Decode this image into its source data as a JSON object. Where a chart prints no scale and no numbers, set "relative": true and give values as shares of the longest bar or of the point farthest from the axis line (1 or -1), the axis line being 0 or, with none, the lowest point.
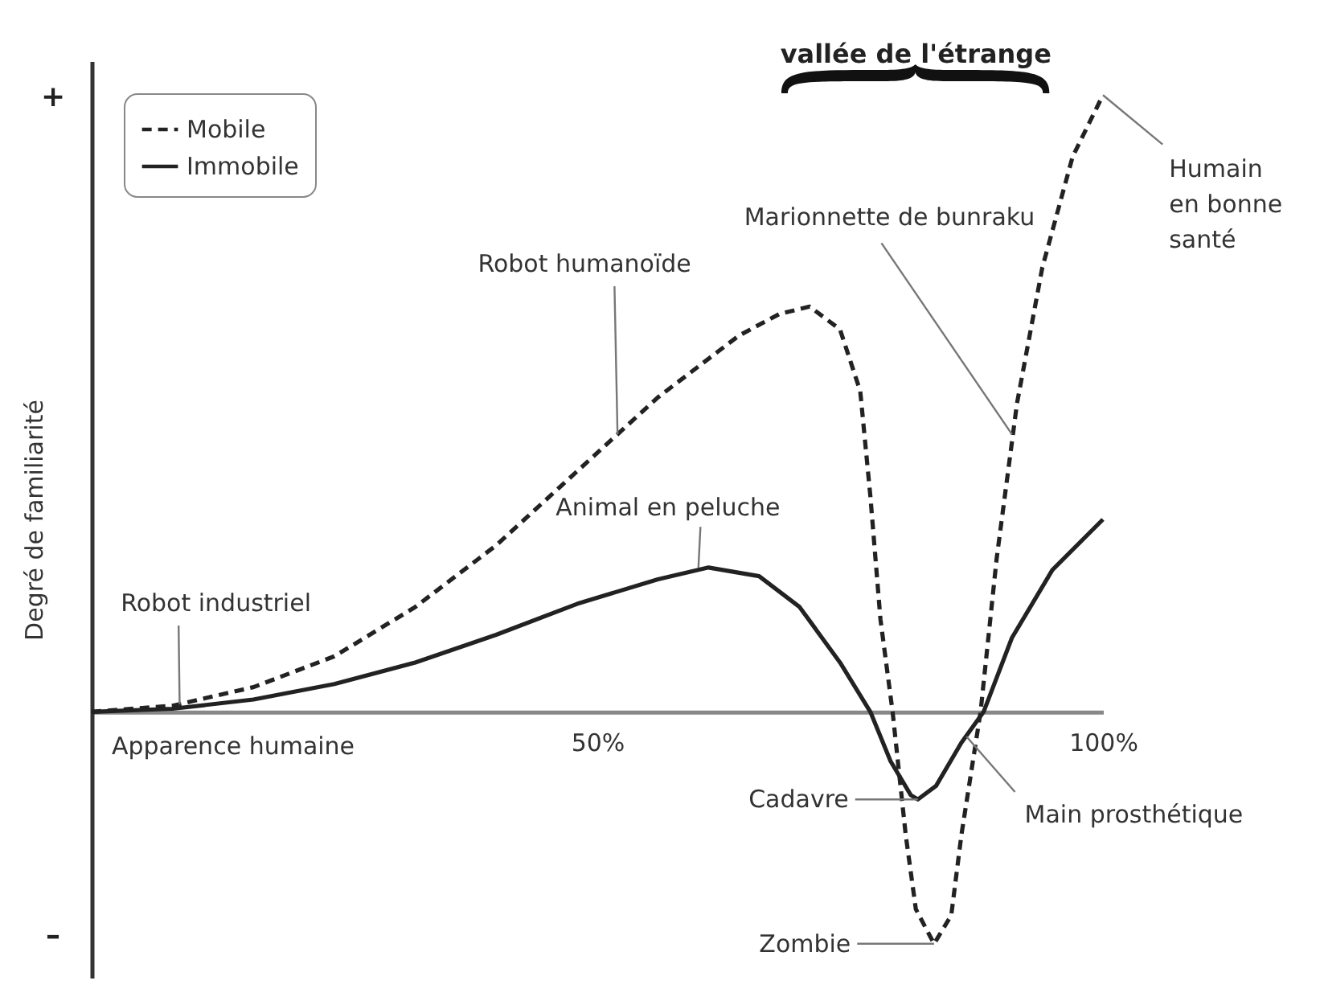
{
  "chart_data": {
    "type": "line",
    "relative": true,
    "xlabel": "Apparence humaine",
    "ylabel": "Degré de familiarité",
    "xlim": [
      0,
      100
    ],
    "xticks": [
      {
        "value": 50,
        "label": "50%"
      },
      {
        "value": 100,
        "label": "100%"
      }
    ],
    "legend": "top left",
    "grid": false,
    "marker": "none",
    "series": [
      {
        "name": "Mobile",
        "color": "#222222",
        "line_style": "dashed",
        "x": [
          0,
          8,
          16,
          24,
          32,
          40,
          48,
          56,
          64,
          68,
          71,
          74,
          76,
          77,
          78,
          79.2,
          80.5,
          81.5,
          83.3,
          85,
          86,
          87.9,
          89.5,
          91.5,
          94,
          97,
          100
        ],
        "values": [
          0,
          0.01,
          0.04,
          0.09,
          0.17,
          0.27,
          0.39,
          0.51,
          0.61,
          0.645,
          0.657,
          0.62,
          0.52,
          0.35,
          0.15,
          0,
          -0.2,
          -0.32,
          -0.376,
          -0.33,
          -0.2,
          0,
          0.25,
          0.5,
          0.72,
          0.9,
          1
        ]
      },
      {
        "name": "Immobile",
        "color": "#222222",
        "line_style": "solid",
        "x": [
          0,
          8,
          16,
          24,
          32,
          40,
          48,
          56,
          61,
          66,
          70,
          74,
          77,
          79,
          81,
          81.7,
          83.5,
          86,
          88.2,
          91,
          95,
          100
        ],
        "values": [
          0,
          0.005,
          0.02,
          0.045,
          0.08,
          0.125,
          0.175,
          0.215,
          0.234,
          0.22,
          0.17,
          0.08,
          0,
          -0.08,
          -0.135,
          -0.142,
          -0.12,
          -0.05,
          0,
          0.12,
          0.23,
          0.312
        ]
      }
    ],
    "annotations": [
      {
        "text": "Robot industriel",
        "x": 8.7,
        "y": 0.012
      },
      {
        "text": "Robot humanoïde",
        "x": 52,
        "y": 0.45
      },
      {
        "text": "Animal en peluche",
        "x": 60,
        "y": 0.234
      },
      {
        "text": "Marionnette de bunraku",
        "x": 91,
        "y": 0.45
      },
      {
        "text": "Humain\nen bonne\nsanté",
        "x": 100,
        "y": 1
      },
      {
        "text": "Cadavre",
        "x": 81.7,
        "y": -0.142
      },
      {
        "text": "Main prosthétique",
        "x": 86.5,
        "y": -0.04
      },
      {
        "text": "Zombie",
        "x": 83.3,
        "y": -0.376
      },
      "+",
      "–",
      "vallée de l'étrange"
    ]
  }
}
